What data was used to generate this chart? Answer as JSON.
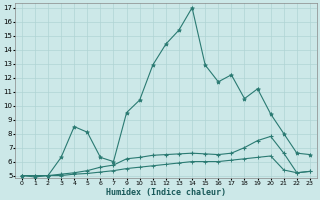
{
  "background_color": "#cce8e8",
  "grid_color": "#b0d4d4",
  "line_color": "#2a7a72",
  "xlabel": "Humidex (Indice chaleur)",
  "ylim": [
    5,
    17
  ],
  "xlim": [
    -0.5,
    22.5
  ],
  "yticks": [
    5,
    6,
    7,
    8,
    9,
    10,
    11,
    12,
    13,
    14,
    15,
    16,
    17
  ],
  "xtick_positions": [
    0,
    1,
    2,
    3,
    4,
    5,
    6,
    7,
    8,
    9,
    10,
    11,
    12,
    13,
    14,
    15,
    16,
    17,
    18,
    19,
    20,
    21,
    22
  ],
  "xtick_labels": [
    "0",
    "1",
    "2",
    "3",
    "4",
    "5",
    "6",
    "7",
    "9",
    "10",
    "11",
    "12",
    "13",
    "14",
    "15",
    "16",
    "17",
    "18",
    "19",
    "20",
    "21",
    "22",
    "23"
  ],
  "line1_x": [
    0,
    1,
    2,
    3,
    4,
    5,
    6,
    7,
    8,
    9,
    10,
    11,
    12,
    13,
    14,
    15,
    16,
    17,
    18,
    19,
    20,
    21,
    22
  ],
  "line1_y": [
    5.0,
    4.9,
    5.0,
    6.3,
    8.5,
    8.1,
    6.3,
    6.0,
    9.5,
    10.4,
    12.9,
    14.4,
    15.4,
    17.0,
    12.9,
    11.7,
    12.2,
    10.5,
    11.2,
    9.4,
    8.0,
    6.6,
    6.5
  ],
  "line2_x": [
    0,
    1,
    2,
    3,
    4,
    5,
    6,
    7,
    8,
    9,
    10,
    11,
    12,
    13,
    14,
    15,
    16,
    17,
    18,
    19,
    20,
    21,
    22
  ],
  "line2_y": [
    5.0,
    5.0,
    5.0,
    5.1,
    5.2,
    5.35,
    5.6,
    5.75,
    6.2,
    6.3,
    6.45,
    6.5,
    6.55,
    6.6,
    6.55,
    6.5,
    6.6,
    7.0,
    7.5,
    7.8,
    6.6,
    5.2,
    5.3
  ],
  "line3_x": [
    0,
    1,
    2,
    3,
    4,
    5,
    6,
    7,
    8,
    9,
    10,
    11,
    12,
    13,
    14,
    15,
    16,
    17,
    18,
    19,
    20,
    21,
    22
  ],
  "line3_y": [
    5.0,
    5.0,
    5.0,
    5.0,
    5.1,
    5.15,
    5.25,
    5.35,
    5.5,
    5.6,
    5.7,
    5.8,
    5.9,
    6.0,
    6.0,
    6.0,
    6.1,
    6.2,
    6.3,
    6.4,
    5.4,
    5.2,
    5.3
  ]
}
